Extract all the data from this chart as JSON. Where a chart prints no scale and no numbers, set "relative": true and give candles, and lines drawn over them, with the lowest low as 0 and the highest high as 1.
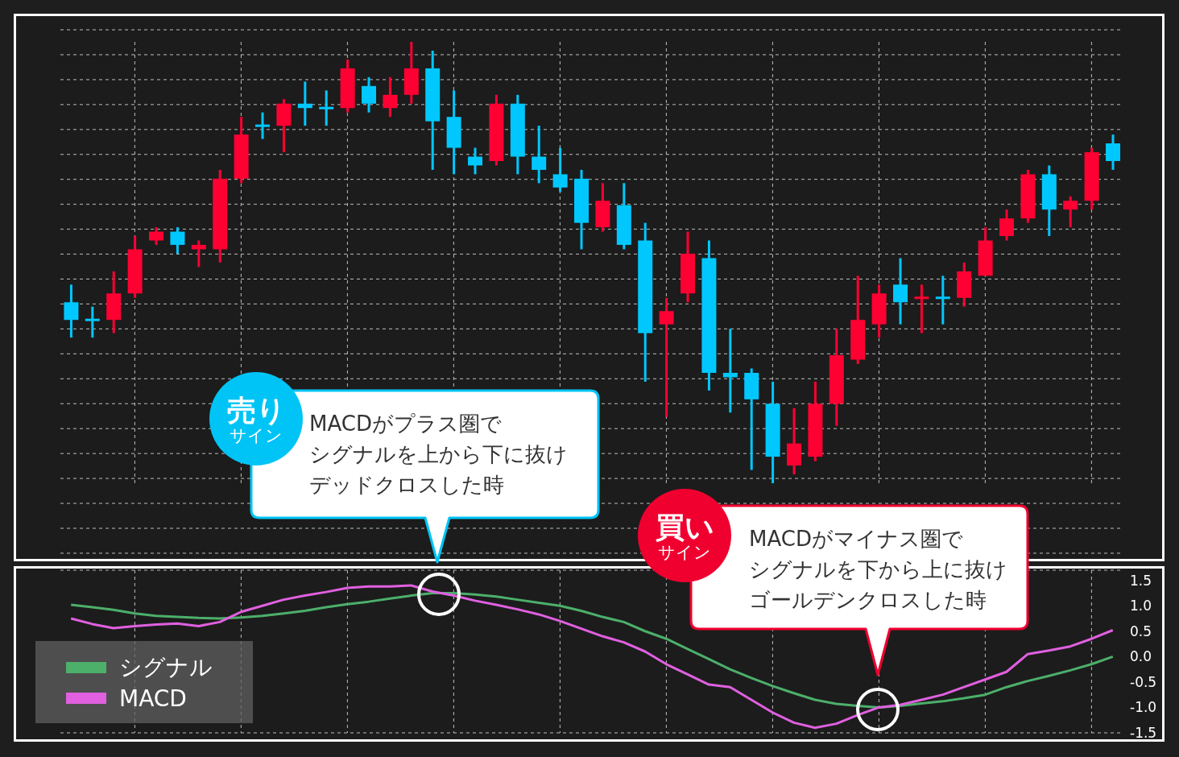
{
  "chart_data": [
    {
      "type": "candlestick",
      "relative": true,
      "grid": true,
      "categories": [
        null,
        null,
        null,
        null,
        null,
        null,
        null,
        null,
        null,
        null,
        null,
        null,
        null,
        null,
        null,
        null,
        null,
        null,
        null,
        null,
        null,
        null,
        null,
        null,
        null,
        null,
        null,
        null,
        null,
        null,
        null,
        null,
        null,
        null,
        null,
        null,
        null,
        null,
        null,
        null,
        null,
        null,
        null,
        null,
        null,
        null,
        null,
        null,
        null,
        null
      ],
      "ohlc": [
        [
          0.41,
          0.45,
          0.33,
          0.37
        ],
        [
          0.37,
          0.4,
          0.33,
          0.37
        ],
        [
          0.37,
          0.48,
          0.34,
          0.43
        ],
        [
          0.43,
          0.56,
          0.42,
          0.53
        ],
        [
          0.55,
          0.58,
          0.54,
          0.57
        ],
        [
          0.57,
          0.58,
          0.52,
          0.54
        ],
        [
          0.53,
          0.55,
          0.49,
          0.54
        ],
        [
          0.53,
          0.71,
          0.5,
          0.69
        ],
        [
          0.69,
          0.83,
          0.68,
          0.79
        ],
        [
          0.81,
          0.84,
          0.78,
          0.81
        ],
        [
          0.81,
          0.87,
          0.75,
          0.86
        ],
        [
          0.86,
          0.91,
          0.81,
          0.85
        ],
        [
          0.85,
          0.89,
          0.81,
          0.85
        ],
        [
          0.85,
          0.96,
          0.84,
          0.94
        ],
        [
          0.9,
          0.92,
          0.84,
          0.86
        ],
        [
          0.85,
          0.92,
          0.83,
          0.88
        ],
        [
          0.88,
          1,
          0.86,
          0.94
        ],
        [
          0.94,
          0.98,
          0.71,
          0.82
        ],
        [
          0.83,
          0.89,
          0.7,
          0.76
        ],
        [
          0.74,
          0.76,
          0.7,
          0.72
        ],
        [
          0.73,
          0.88,
          0.72,
          0.86
        ],
        [
          0.86,
          0.88,
          0.7,
          0.74
        ],
        [
          0.74,
          0.81,
          0.68,
          0.71
        ],
        [
          0.7,
          0.76,
          0.66,
          0.67
        ],
        [
          0.69,
          0.71,
          0.53,
          0.59
        ],
        [
          0.58,
          0.68,
          0.57,
          0.64
        ],
        [
          0.63,
          0.68,
          0.53,
          0.54
        ],
        [
          0.55,
          0.59,
          0.23,
          0.34
        ],
        [
          0.36,
          0.42,
          0.15,
          0.39
        ],
        [
          0.43,
          0.57,
          0.41,
          0.52
        ],
        [
          0.51,
          0.55,
          0.21,
          0.25
        ],
        [
          0.25,
          0.35,
          0.16,
          0.24
        ],
        [
          0.25,
          0.26,
          0.03,
          0.19
        ],
        [
          0.18,
          0.23,
          0,
          0.06
        ],
        [
          0.04,
          0.17,
          0.02,
          0.09
        ],
        [
          0.06,
          0.23,
          0.05,
          0.18
        ],
        [
          0.18,
          0.35,
          0.13,
          0.29
        ],
        [
          0.28,
          0.47,
          0.27,
          0.37
        ],
        [
          0.36,
          0.45,
          0.33,
          0.43
        ],
        [
          0.45,
          0.51,
          0.36,
          0.41
        ],
        [
          0.42,
          0.45,
          0.34,
          0.42
        ],
        [
          0.42,
          0.47,
          0.36,
          0.42
        ],
        [
          0.42,
          0.5,
          0.4,
          0.48
        ],
        [
          0.47,
          0.58,
          0.47,
          0.55
        ],
        [
          0.56,
          0.62,
          0.55,
          0.6
        ],
        [
          0.6,
          0.71,
          0.59,
          0.7
        ],
        [
          0.7,
          0.72,
          0.56,
          0.62
        ],
        [
          0.62,
          0.65,
          0.58,
          0.64
        ],
        [
          0.64,
          0.76,
          0.62,
          0.75
        ],
        [
          0.77,
          0.79,
          0.71,
          0.73
        ]
      ],
      "colors": [
        "#00c8ff",
        "#00c8ff",
        "#ff0033",
        "#ff0033",
        "#ff0033",
        "#00c8ff",
        "#ff0033",
        "#ff0033",
        "#ff0033",
        "#00c8ff",
        "#ff0033",
        "#00c8ff",
        "#00c8ff",
        "#ff0033",
        "#00c8ff",
        "#ff0033",
        "#ff0033",
        "#00c8ff",
        "#00c8ff",
        "#00c8ff",
        "#ff0033",
        "#00c8ff",
        "#00c8ff",
        "#00c8ff",
        "#00c8ff",
        "#ff0033",
        "#00c8ff",
        "#00c8ff",
        "#ff0033",
        "#ff0033",
        "#00c8ff",
        "#00c8ff",
        "#00c8ff",
        "#00c8ff",
        "#ff0033",
        "#ff0033",
        "#ff0033",
        "#ff0033",
        "#ff0033",
        "#00c8ff",
        "#ff0033",
        "#00c8ff",
        "#ff0033",
        "#ff0033",
        "#ff0033",
        "#ff0033",
        "#00c8ff",
        "#ff0033",
        "#ff0033",
        "#00c8ff"
      ]
    },
    {
      "type": "line",
      "grid": true,
      "legend": "bottom left",
      "tick_labels": "y",
      "categories": [
        null,
        null,
        null,
        null,
        null,
        null,
        null,
        null,
        null,
        null,
        null,
        null,
        null,
        null,
        null,
        null,
        null,
        null,
        null,
        null,
        null,
        null,
        null,
        null,
        null,
        null,
        null,
        null,
        null,
        null,
        null,
        null,
        null,
        null,
        null,
        null,
        null,
        null,
        null,
        null,
        null,
        null,
        null,
        null,
        null,
        null,
        null,
        null,
        null,
        null
      ],
      "ylim": [
        -1.5,
        1.7
      ],
      "yticks": [
        {
          "value": 1.5,
          "label": "1.5"
        },
        {
          "value": 1,
          "label": "1.0"
        },
        {
          "value": 0.5,
          "label": "0.5"
        },
        {
          "value": 0,
          "label": "0.0"
        },
        {
          "value": -0.5,
          "label": "-0.5"
        },
        {
          "value": -1,
          "label": "-1.0"
        },
        {
          "value": -1.5,
          "label": "-1.5"
        }
      ],
      "series": [
        {
          "name": "シグナル",
          "color": "#4caf6a",
          "values": [
            1.02,
            0.97,
            0.92,
            0.85,
            0.8,
            0.78,
            0.76,
            0.75,
            0.77,
            0.8,
            0.85,
            0.9,
            0.97,
            1.03,
            1.08,
            1.14,
            1.2,
            1.25,
            1.25,
            1.22,
            1.18,
            1.12,
            1.06,
            1.0,
            0.9,
            0.78,
            0.68,
            0.5,
            0.35,
            0.15,
            -0.05,
            -0.25,
            -0.42,
            -0.58,
            -0.72,
            -0.85,
            -0.93,
            -0.97,
            -1.0,
            -0.97,
            -0.92,
            -0.88,
            -0.82,
            -0.75,
            -0.6,
            -0.48,
            -0.38,
            -0.27,
            -0.15,
            0.0
          ]
        },
        {
          "name": "MACD",
          "color": "#e060e0",
          "values": [
            0.75,
            0.64,
            0.56,
            0.6,
            0.63,
            0.65,
            0.6,
            0.68,
            0.88,
            1.0,
            1.12,
            1.2,
            1.27,
            1.35,
            1.38,
            1.38,
            1.4,
            1.28,
            1.2,
            1.1,
            1.02,
            0.93,
            0.83,
            0.7,
            0.55,
            0.4,
            0.28,
            0.1,
            -0.15,
            -0.35,
            -0.55,
            -0.6,
            -0.85,
            -1.1,
            -1.3,
            -1.4,
            -1.32,
            -1.15,
            -1.0,
            -0.95,
            -0.85,
            -0.75,
            -0.6,
            -0.45,
            -0.3,
            0.05,
            0.12,
            0.2,
            0.35,
            0.52
          ]
        }
      ],
      "annotations": [
        "売り",
        "サイン",
        "MACDがプラス圏で",
        "シグナルを上から下に抜け",
        "デッドクロスした時",
        "買い",
        "サイン",
        "MACDがマイナス圏で",
        "シグナルを下から上に抜け",
        "ゴールデンクロスした時"
      ]
    }
  ]
}
